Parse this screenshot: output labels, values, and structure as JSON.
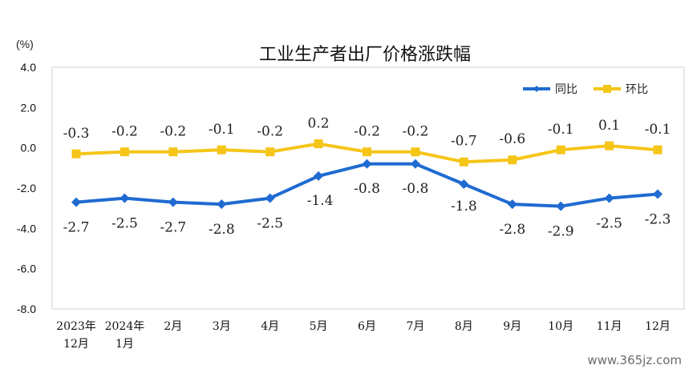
{
  "chart_data": {
    "type": "line",
    "title": "工业生产者出厂价格涨跌幅",
    "unit": "(%)",
    "categories": [
      [
        "2023年",
        "12月"
      ],
      [
        "2024年",
        "1月"
      ],
      [
        "2月"
      ],
      [
        "3月"
      ],
      [
        "4月"
      ],
      [
        "5月"
      ],
      [
        "6月"
      ],
      [
        "7月"
      ],
      [
        "8月"
      ],
      [
        "9月"
      ],
      [
        "10月"
      ],
      [
        "11月"
      ],
      [
        "12月"
      ]
    ],
    "y_ticks": [
      "4.0",
      "2.0",
      "0.0",
      "-2.0",
      "-4.0",
      "-6.0",
      "-8.0"
    ],
    "ylim": [
      -8,
      4
    ],
    "grid": false,
    "legend_position": "top-right",
    "series": [
      {
        "name": "同比",
        "color": "#1f6bd1",
        "marker": "diamond",
        "values": [
          -2.7,
          -2.5,
          -2.7,
          -2.8,
          -2.5,
          -1.4,
          -0.8,
          -0.8,
          -1.8,
          -2.8,
          -2.9,
          -2.5,
          -2.3
        ],
        "labels": [
          "-2.7",
          "-2.5",
          "-2.7",
          "-2.8",
          "-2.5",
          "-1.4",
          "-0.8",
          "-0.8",
          "-1.8",
          "-2.8",
          "-2.9",
          "-2.5",
          "-2.3"
        ]
      },
      {
        "name": "环比",
        "color": "#f5c518",
        "marker": "square",
        "values": [
          -0.3,
          -0.2,
          -0.2,
          -0.1,
          -0.2,
          0.2,
          -0.2,
          -0.2,
          -0.7,
          -0.6,
          -0.1,
          0.1,
          -0.1
        ],
        "labels": [
          "-0.3",
          "-0.2",
          "-0.2",
          "-0.1",
          "-0.2",
          "0.2",
          "-0.2",
          "-0.2",
          "-0.7",
          "-0.6",
          "-0.1",
          "0.1",
          "-0.1"
        ]
      }
    ]
  },
  "watermark": "www.365jz.com"
}
